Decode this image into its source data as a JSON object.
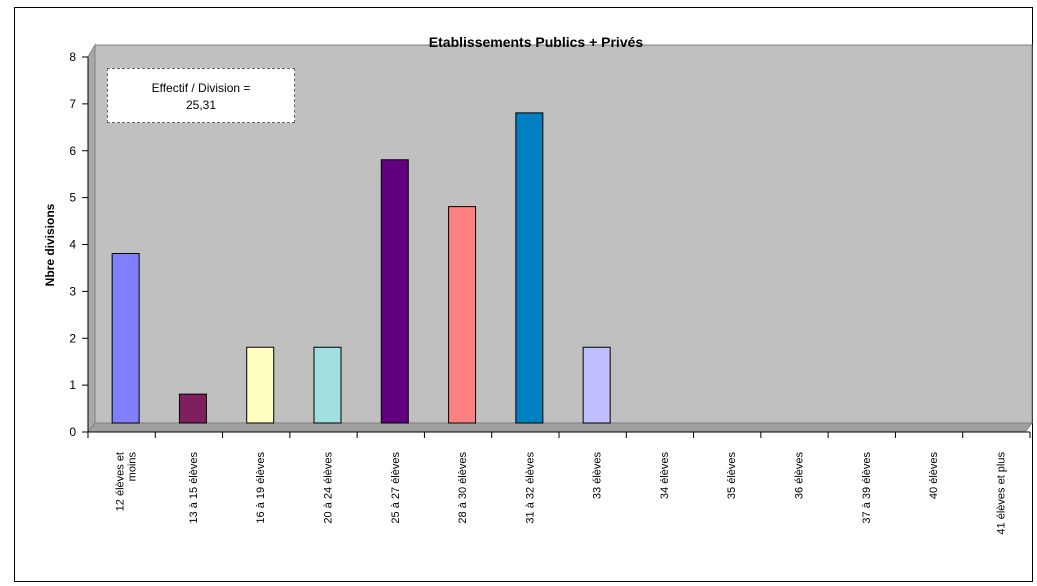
{
  "chart_data": {
    "type": "bar",
    "title": "Etablissements Publics + Privés",
    "xlabel": "",
    "ylabel": "Nbre divisions",
    "ylim": [
      0,
      8
    ],
    "yticks": [
      "0",
      "1",
      "2",
      "3",
      "4",
      "5",
      "6",
      "7",
      "8"
    ],
    "categories": [
      [
        "12 élèves et",
        "moins"
      ],
      [
        "13 à 15 élèves"
      ],
      [
        "16 à 19 élèves"
      ],
      [
        "20 à 24 élèves"
      ],
      [
        "25 à 27 élèves"
      ],
      [
        "28 à 30 élèves"
      ],
      [
        "31 à 32 élèves"
      ],
      [
        "33 élèves"
      ],
      [
        "34 élèves"
      ],
      [
        "35 élèves"
      ],
      [
        "36 élèves"
      ],
      [
        "37 à 39 élèves"
      ],
      [
        "40 élèves"
      ],
      [
        "41 élèves et plus"
      ]
    ],
    "values": [
      4,
      1,
      2,
      2,
      6,
      5,
      7,
      2,
      0,
      0,
      0,
      0,
      0,
      0
    ],
    "bar_colors": [
      "#8080FF",
      "#7F1F5F",
      "#FFFFC0",
      "#A0E0E0",
      "#600080",
      "#FF8080",
      "#0080C0",
      "#C0C0FF",
      "#000080",
      "#FF00FF",
      "#FFFF00",
      "#00FFFF",
      "#800080",
      "#800000"
    ],
    "plot_background": "#C0C0C0",
    "grid": false,
    "legend": "none",
    "annotation": [
      "Effectif / Division =",
      "25,31"
    ]
  }
}
